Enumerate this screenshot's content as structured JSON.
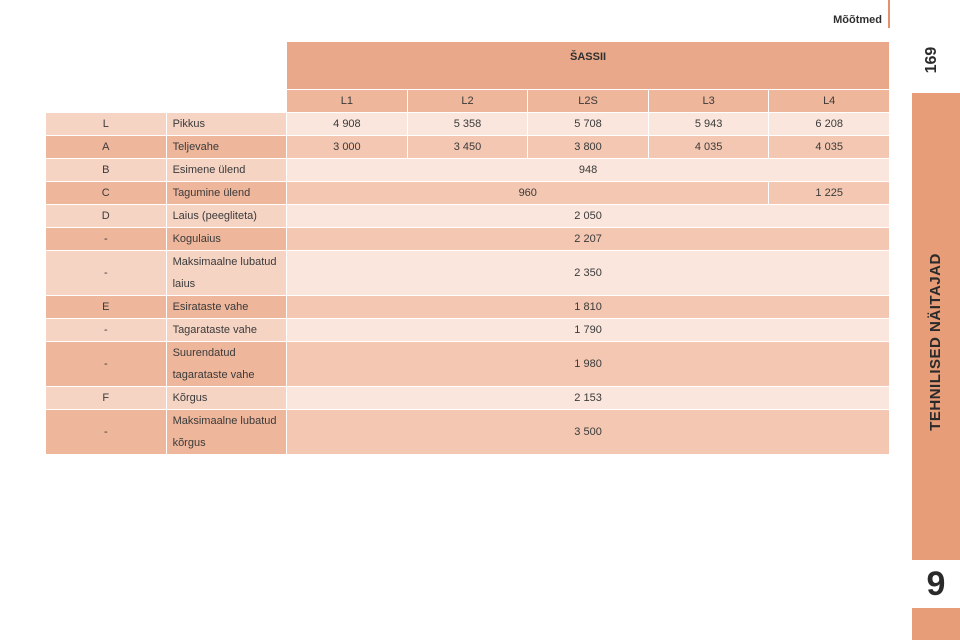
{
  "header": {
    "title": "Mõõtmed",
    "page_number": "169"
  },
  "side_tab": {
    "label": "TEHNILISED NÄITAJAD",
    "chapter": "9"
  },
  "table": {
    "group_header": "ŠASSII",
    "columns": [
      "L1",
      "L2",
      "L2S",
      "L3",
      "L4"
    ],
    "rows": [
      {
        "key": "L",
        "label": "Pikkus",
        "cells": [
          {
            "v": "4 908",
            "span": 1
          },
          {
            "v": "5 358",
            "span": 1
          },
          {
            "v": "5 708",
            "span": 1
          },
          {
            "v": "5 943",
            "span": 1
          },
          {
            "v": "6 208",
            "span": 1
          }
        ]
      },
      {
        "key": "A",
        "label": "Teljevahe",
        "cells": [
          {
            "v": "3 000",
            "span": 1
          },
          {
            "v": "3 450",
            "span": 1
          },
          {
            "v": "3 800",
            "span": 1
          },
          {
            "v": "4 035",
            "span": 1
          },
          {
            "v": "4 035",
            "span": 1
          }
        ]
      },
      {
        "key": "B",
        "label": "Esimene ülend",
        "cells": [
          {
            "v": "948",
            "span": 5
          }
        ]
      },
      {
        "key": "C",
        "label": "Tagumine ülend",
        "cells": [
          {
            "v": "960",
            "span": 4
          },
          {
            "v": "1 225",
            "span": 1
          }
        ]
      },
      {
        "key": "D",
        "label": "Laius (peegliteta)",
        "cells": [
          {
            "v": "2 050",
            "span": 5
          }
        ]
      },
      {
        "key": "-",
        "label": "Kogulaius",
        "cells": [
          {
            "v": "2 207",
            "span": 5
          }
        ]
      },
      {
        "key": "-",
        "label": "Maksimaalne lubatud laius",
        "cells": [
          {
            "v": "2 350",
            "span": 5
          }
        ]
      },
      {
        "key": "E",
        "label": "Esirataste vahe",
        "cells": [
          {
            "v": "1 810",
            "span": 5
          }
        ]
      },
      {
        "key": "-",
        "label": "Tagarataste vahe",
        "cells": [
          {
            "v": "1 790",
            "span": 5
          }
        ]
      },
      {
        "key": "-",
        "label": "Suurendatud tagarataste vahe",
        "cells": [
          {
            "v": "1 980",
            "span": 5
          }
        ]
      },
      {
        "key": "F",
        "label": "Kõrgus",
        "cells": [
          {
            "v": "2 153",
            "span": 5
          }
        ]
      },
      {
        "key": "-",
        "label": "Maksimaalne lubatud kõrgus",
        "cells": [
          {
            "v": "3 500",
            "span": 5
          }
        ]
      }
    ]
  }
}
